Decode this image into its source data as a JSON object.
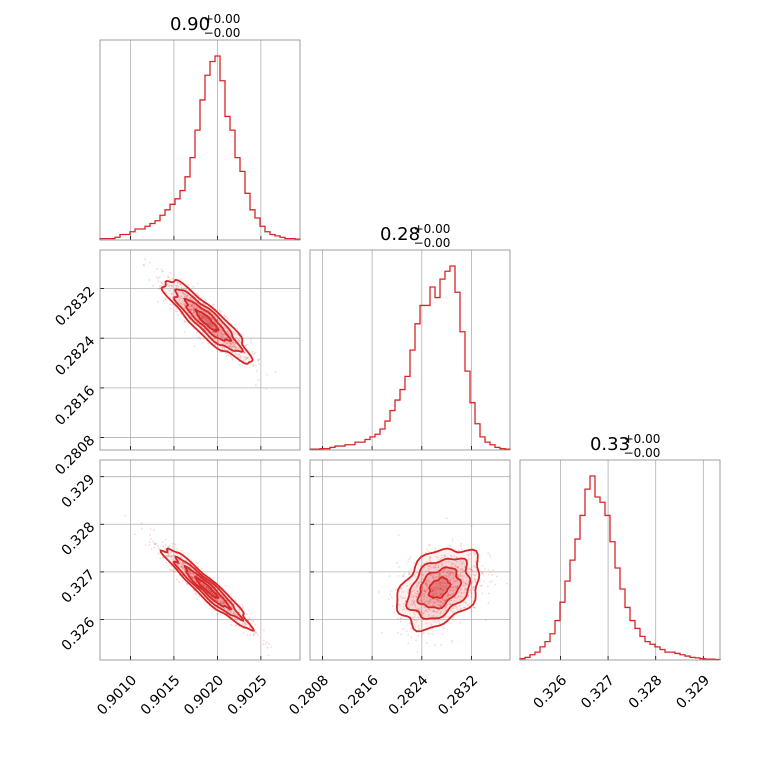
{
  "chart_data": {
    "type": "corner",
    "color": "#d62728",
    "grid": true,
    "parameters": [
      {
        "title_value": "0.90",
        "title_err_plus": "+0.00",
        "title_err_minus": "−0.00",
        "range": [
          0.90065,
          0.90295
        ],
        "ticks": [
          0.901,
          0.9015,
          0.902,
          0.9025
        ],
        "tick_labels": [
          "0.9010",
          "0.9015",
          "0.9020",
          "0.9025"
        ],
        "hist": [
          0.5,
          0.5,
          0.5,
          1,
          2,
          2,
          3,
          4,
          4,
          5,
          6,
          7,
          9,
          11,
          13,
          15,
          18,
          23,
          30,
          40,
          51,
          60,
          65,
          67,
          58,
          45,
          40,
          30,
          25,
          17,
          11,
          8,
          5,
          3,
          2,
          1.5,
          1,
          0.5,
          0.5,
          0.3
        ],
        "center": 0.90188,
        "sigma": 0.00025
      },
      {
        "title_value": "0.28",
        "title_err_plus": "+0.00",
        "title_err_minus": "−0.00",
        "range": [
          0.2806,
          0.28382
        ],
        "ticks": [
          0.2808,
          0.2816,
          0.2824,
          0.2832
        ],
        "tick_labels": [
          "0.2808",
          "0.2816",
          "0.2824",
          "0.2832"
        ],
        "hist": [
          0.3,
          0.3,
          0.5,
          0.5,
          1,
          1.5,
          1.5,
          2,
          2,
          3,
          3,
          4,
          5,
          6,
          8,
          11,
          15,
          19,
          23,
          28,
          38,
          48,
          55,
          55,
          62,
          58,
          65,
          68,
          70,
          60,
          45,
          30,
          18,
          10,
          5,
          3,
          2,
          1,
          0.5,
          0.3
        ],
        "center": 0.28268,
        "sigma": 0.00033
      },
      {
        "title_value": "0.33",
        "title_err_plus": "+0.00",
        "title_err_minus": "−0.00",
        "range": [
          0.32515,
          0.32935
        ],
        "ticks": [
          0.326,
          0.327,
          0.328,
          0.329
        ],
        "tick_labels": [
          "0.326",
          "0.327",
          "0.328",
          "0.329"
        ],
        "hist": [
          0.5,
          1,
          2,
          3,
          5,
          7,
          10,
          15,
          22,
          30,
          38,
          46,
          55,
          65,
          70,
          62,
          60,
          55,
          45,
          35,
          27,
          20,
          15,
          12,
          9,
          7,
          6,
          5,
          4,
          3,
          3,
          2.5,
          2,
          1.5,
          1,
          0.8,
          0.5,
          0.3,
          0.3,
          0.2
        ],
        "center": 0.32666,
        "sigma": 0.00042
      }
    ],
    "correlations": {
      "0,1": -0.9,
      "0,2": -0.95,
      "1,2": 0.35
    }
  }
}
